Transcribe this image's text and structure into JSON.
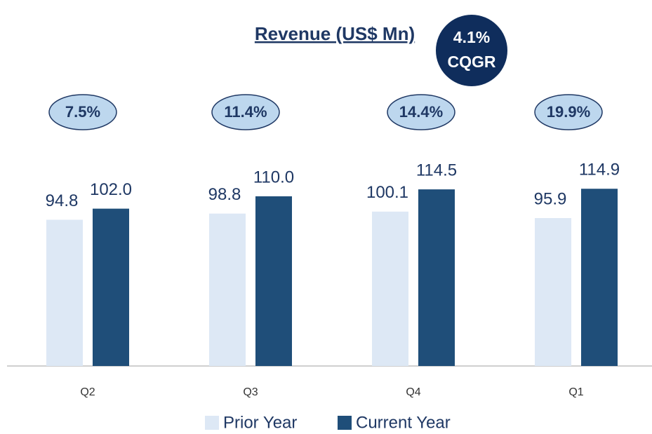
{
  "chart_data": {
    "type": "bar",
    "title": "Revenue (US$ Mn)",
    "badge": [
      "4.1%",
      "CQGR"
    ],
    "growth_labels": [
      "7.5%",
      "11.4%",
      "14.4%",
      "19.9%"
    ],
    "categories": [
      "Q2",
      "Q3",
      "Q4",
      "Q1"
    ],
    "series": [
      {
        "name": "Prior Year",
        "color": "#dde8f5",
        "values": [
          94.8,
          98.8,
          100.1,
          95.9
        ],
        "value_labels": [
          "94.8",
          "98.8",
          "100.1",
          "95.9"
        ]
      },
      {
        "name": "Current Year",
        "color": "#1f4e79",
        "values": [
          102.0,
          110.0,
          114.5,
          114.9
        ],
        "value_labels": [
          "102.0",
          "110.0",
          "114.5",
          "114.9"
        ]
      }
    ]
  }
}
